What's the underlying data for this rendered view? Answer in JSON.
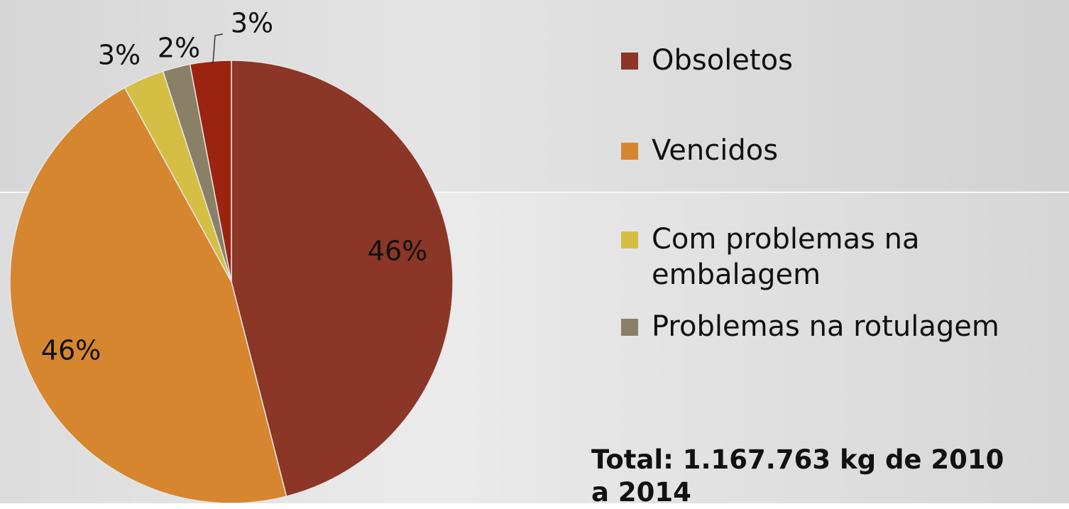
{
  "chart_data": {
    "type": "pie",
    "categories": [
      "Obsoletos",
      "Vencidos",
      "Com problemas na embalagem",
      "Problemas na rotulagem",
      null
    ],
    "values": [
      46,
      46,
      3,
      2,
      3
    ],
    "value_labels": [
      "46%",
      "46%",
      "3%",
      "2%",
      "3%"
    ],
    "colors": [
      "#8b3626",
      "#d6862e",
      "#d4bf44",
      "#8a8068",
      "#9b2410"
    ],
    "annotation": "Total: 1.167.763 kg de 2010 a 2014"
  }
}
